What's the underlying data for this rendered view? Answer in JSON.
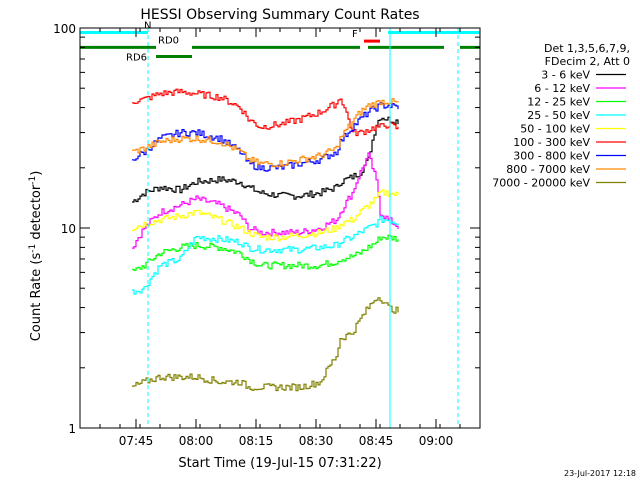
{
  "chart_data": {
    "type": "line",
    "title": "HESSI Observing Summary Count Rates",
    "xlabel": "Start Time (19-Jul-15 07:31:22)",
    "ylabel_main": "Count Rate (s",
    "ylabel_sup1": "-1",
    "ylabel_mid": " detector",
    "ylabel_sup2": "-1",
    "ylabel_end": ")",
    "yscale": "log",
    "ylim": [
      1,
      100
    ],
    "xlim_minutes": [
      0,
      100
    ],
    "x_ticks": [
      {
        "minute": 14,
        "label": "07:45"
      },
      {
        "minute": 29,
        "label": "08:00"
      },
      {
        "minute": 44,
        "label": "08:15"
      },
      {
        "minute": 59,
        "label": "08:30"
      },
      {
        "minute": 74,
        "label": "08:45"
      },
      {
        "minute": 89,
        "label": "09:00"
      }
    ],
    "y_ticks": [
      {
        "value": 1,
        "label": "1"
      },
      {
        "value": 10,
        "label": "10"
      },
      {
        "value": 100,
        "label": "100"
      }
    ],
    "legend": {
      "header1": "Det 1,3,5,6,7,9,",
      "header2": "FDecim 2, Att 0",
      "placement": "right"
    },
    "series": [
      {
        "name": "3 - 6 keV",
        "color": "#000000",
        "x": [
          13,
          16,
          20,
          25,
          29,
          35,
          40,
          42,
          45,
          50,
          55,
          60,
          64,
          65,
          68,
          70,
          72,
          74,
          75,
          77,
          80
        ],
        "y": [
          13.5,
          15,
          16,
          15.5,
          17,
          17.5,
          17,
          16,
          15,
          14.5,
          14.5,
          15,
          16,
          17,
          18,
          19,
          22,
          33,
          36,
          35,
          34
        ]
      },
      {
        "name": "6 - 12 keV",
        "color": "#ff00ff",
        "x": [
          13,
          16,
          20,
          25,
          29,
          35,
          40,
          42,
          45,
          50,
          55,
          60,
          64,
          65,
          68,
          70,
          72,
          74,
          75,
          77,
          80
        ],
        "y": [
          8,
          10,
          12,
          13,
          14,
          13,
          11.5,
          10,
          9.5,
          9.5,
          9.5,
          10,
          11,
          12,
          15,
          19,
          23,
          17,
          12,
          11,
          10
        ]
      },
      {
        "name": "12 - 25 keV",
        "color": "#00ff00",
        "x": [
          13,
          16,
          20,
          25,
          29,
          35,
          40,
          42,
          45,
          50,
          55,
          60,
          64,
          65,
          68,
          70,
          72,
          74,
          75,
          77,
          80
        ],
        "y": [
          6,
          6.5,
          7.5,
          8,
          8.2,
          8,
          7.5,
          7,
          6.5,
          6.5,
          6.5,
          6.5,
          6.8,
          7,
          7.2,
          7.5,
          8,
          8.5,
          9,
          9,
          8.8
        ]
      },
      {
        "name": "25 - 50 keV",
        "color": "#00ffff",
        "x": [
          13,
          16,
          20,
          25,
          29,
          35,
          40,
          42,
          45,
          50,
          55,
          60,
          64,
          65,
          68,
          70,
          72,
          74,
          75,
          77,
          80
        ],
        "y": [
          4.8,
          5,
          6.5,
          7,
          9,
          8.8,
          8.5,
          8,
          7.8,
          7.8,
          7.8,
          8,
          8.2,
          8.5,
          9,
          9.5,
          10,
          10.5,
          11,
          11,
          10.5
        ]
      },
      {
        "name": "50 - 100 keV",
        "color": "#ffff00",
        "x": [
          13,
          16,
          20,
          25,
          29,
          35,
          40,
          42,
          45,
          50,
          55,
          60,
          64,
          65,
          68,
          70,
          72,
          74,
          75,
          77,
          80
        ],
        "y": [
          10,
          10.5,
          11,
          11.5,
          12,
          11,
          10,
          9.5,
          9,
          9,
          9.2,
          9.5,
          10,
          10.5,
          11,
          12,
          13,
          14,
          15,
          15,
          14.5
        ]
      },
      {
        "name": "100 - 300 keV",
        "color": "#ff0000",
        "x": [
          13,
          16,
          20,
          25,
          29,
          35,
          40,
          42,
          45,
          50,
          55,
          60,
          64,
          65,
          68,
          70,
          72,
          74,
          75,
          77,
          80
        ],
        "y": [
          43,
          44,
          47,
          48,
          47,
          45,
          40,
          35,
          32,
          33,
          35,
          38,
          42,
          45,
          30,
          30,
          31,
          32,
          32,
          33,
          31
        ]
      },
      {
        "name": "300 - 800 keV",
        "color": "#0000ff",
        "x": [
          13,
          16,
          20,
          25,
          29,
          35,
          40,
          42,
          45,
          50,
          55,
          60,
          64,
          65,
          68,
          70,
          72,
          74,
          75,
          77,
          80
        ],
        "y": [
          22,
          24,
          28,
          30,
          30,
          28,
          24,
          21,
          20,
          20,
          21,
          22,
          24,
          27,
          32,
          35,
          38,
          40,
          41,
          41,
          40
        ]
      },
      {
        "name": "800 - 7000 keV",
        "color": "#ff8800",
        "x": [
          13,
          16,
          20,
          25,
          29,
          35,
          40,
          42,
          45,
          50,
          55,
          60,
          64,
          65,
          68,
          70,
          72,
          74,
          75,
          77,
          80
        ],
        "y": [
          24,
          25,
          27,
          28,
          28,
          27,
          24,
          22,
          21,
          21,
          22,
          23,
          25,
          28,
          34,
          38,
          41,
          42,
          43,
          43,
          42
        ]
      },
      {
        "name": "7000 - 20000 keV",
        "color": "#808000",
        "x": [
          13,
          16,
          20,
          25,
          29,
          35,
          40,
          42,
          45,
          50,
          55,
          60,
          64,
          65,
          68,
          70,
          72,
          74,
          75,
          77,
          80
        ],
        "y": [
          1.6,
          1.7,
          1.8,
          1.8,
          1.8,
          1.7,
          1.7,
          1.6,
          1.6,
          1.6,
          1.6,
          1.7,
          2.3,
          2.8,
          3,
          3.5,
          4,
          4.5,
          4.5,
          4,
          3.8
        ]
      }
    ],
    "flag_bars": [
      {
        "label": "N",
        "color": "#00ffff",
        "y": 95,
        "segments": [
          [
            0,
            17
          ],
          [
            77,
            100
          ]
        ]
      },
      {
        "label": "F",
        "color": "#ff0000",
        "y": 86,
        "segments": [
          [
            71,
            75
          ]
        ]
      },
      {
        "label": "RD0",
        "color": "#008000",
        "y": 80,
        "segments": [
          [
            0,
            19
          ],
          [
            28,
            70
          ],
          [
            72,
            91
          ],
          [
            95,
            100
          ]
        ]
      },
      {
        "label": "RD6",
        "color": "#008000",
        "y": 72,
        "segments": [
          [
            19,
            28
          ]
        ]
      }
    ],
    "vlines": [
      {
        "minute": 17,
        "color": "#00ffff",
        "style": "dashed"
      },
      {
        "minute": 77.5,
        "color": "#00ffff",
        "style": "solid"
      },
      {
        "minute": 94.5,
        "color": "#00ffff",
        "style": "dashed"
      }
    ]
  },
  "footer": {
    "date": "23-Jul-2017 12:18"
  }
}
